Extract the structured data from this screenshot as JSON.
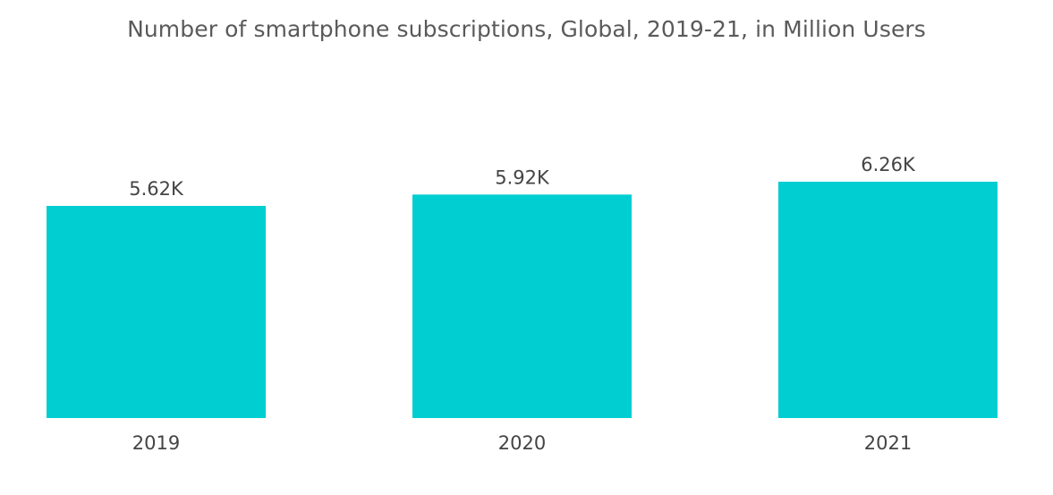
{
  "chart_data": {
    "type": "bar",
    "title": "Number of smartphone subscriptions, Global, 2019-21, in Million Users",
    "categories": [
      "2019",
      "2020",
      "2021"
    ],
    "values": [
      5620,
      5920,
      6260
    ],
    "value_labels": [
      "5.62K",
      "5.92K",
      "6.26K"
    ],
    "xlabel": "",
    "ylabel": "",
    "bar_color": "#00CED1",
    "grid": false,
    "legend": "none"
  }
}
